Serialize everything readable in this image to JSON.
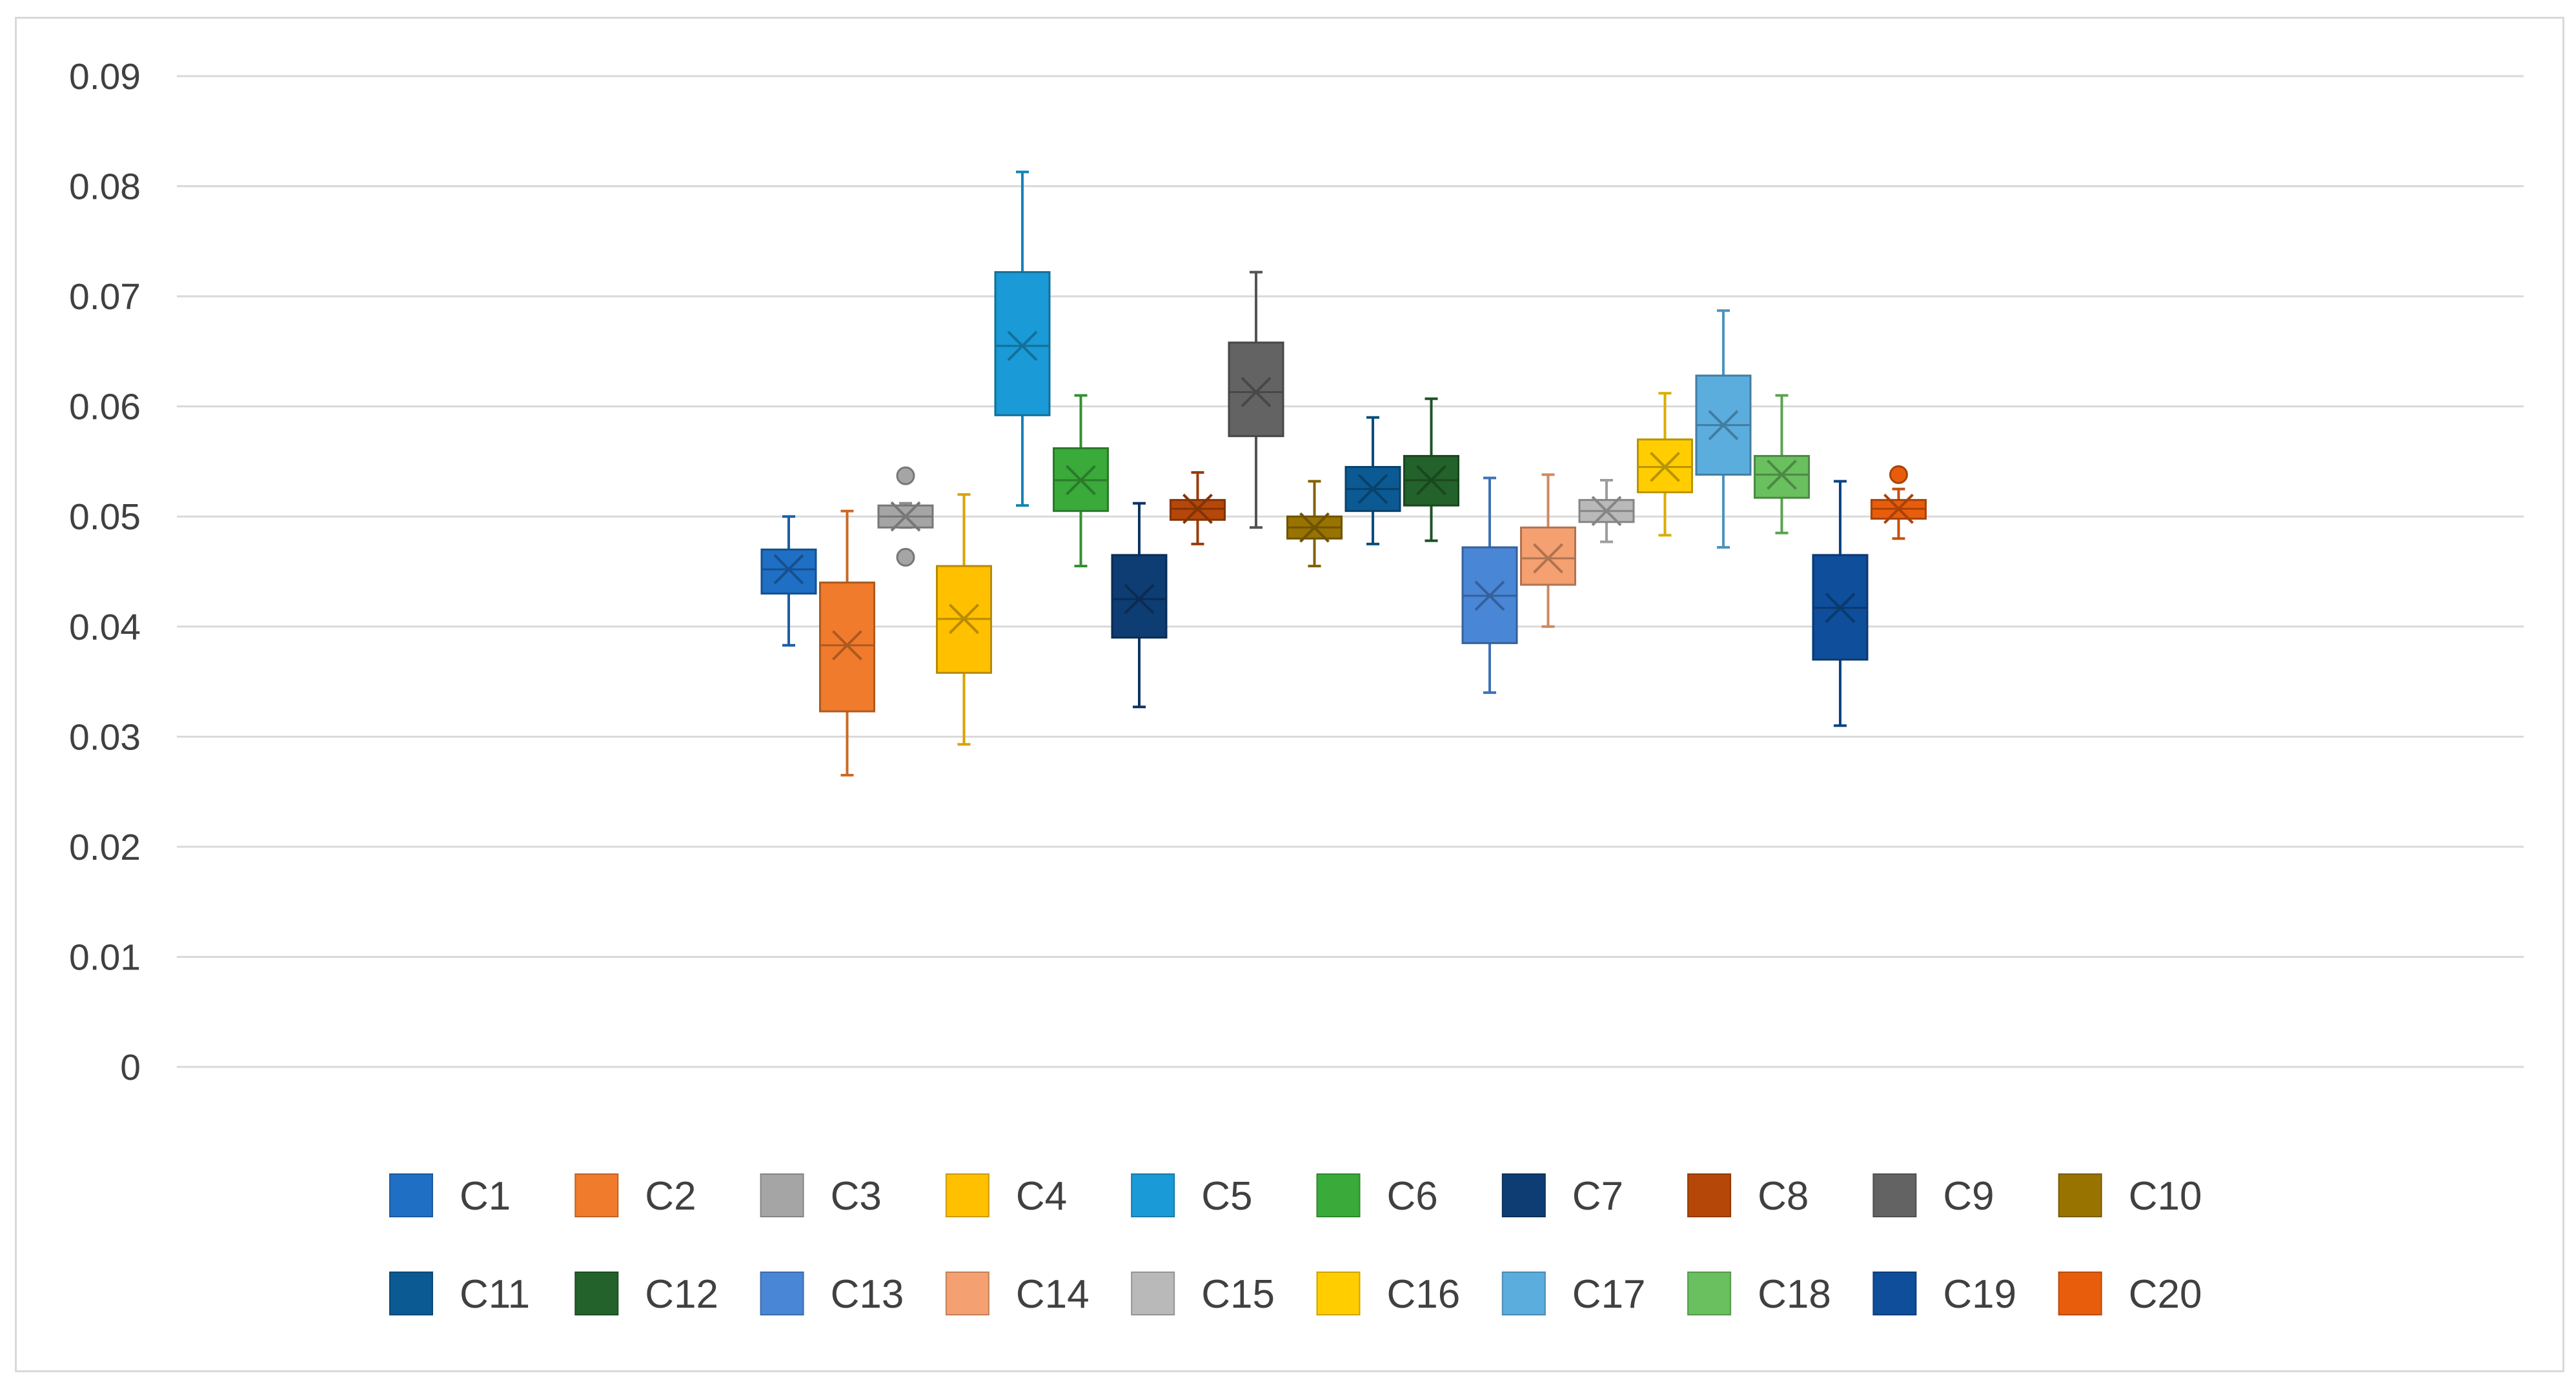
{
  "chart_data": {
    "type": "box",
    "title": "",
    "xlabel": "",
    "ylabel": "",
    "ylim": [
      0,
      0.09
    ],
    "y_ticks": [
      "0",
      "0.01",
      "0.02",
      "0.03",
      "0.04",
      "0.05",
      "0.06",
      "0.07",
      "0.08",
      "0.09"
    ],
    "grid": true,
    "legend_position": "bottom",
    "series": [
      {
        "name": "C1",
        "color": "#1f6fc5",
        "min": 0.0383,
        "q1": 0.043,
        "median": 0.0452,
        "q3": 0.047,
        "max": 0.05,
        "mean": 0.0452,
        "outliers": []
      },
      {
        "name": "C2",
        "color": "#f07b2c",
        "min": 0.0265,
        "q1": 0.0323,
        "median": 0.0383,
        "q3": 0.044,
        "max": 0.0505,
        "mean": 0.0383,
        "outliers": []
      },
      {
        "name": "C3",
        "color": "#a5a5a5",
        "min": 0.049,
        "q1": 0.049,
        "median": 0.05,
        "q3": 0.051,
        "max": 0.0512,
        "mean": 0.05,
        "outliers": [
          0.0537,
          0.0463
        ]
      },
      {
        "name": "C4",
        "color": "#ffc000",
        "min": 0.0293,
        "q1": 0.0358,
        "median": 0.0407,
        "q3": 0.0455,
        "max": 0.052,
        "mean": 0.0407,
        "outliers": []
      },
      {
        "name": "C5",
        "color": "#1a9ad6",
        "min": 0.051,
        "q1": 0.0592,
        "median": 0.0655,
        "q3": 0.0722,
        "max": 0.0813,
        "mean": 0.0655,
        "outliers": []
      },
      {
        "name": "C6",
        "color": "#3aaa3a",
        "min": 0.0455,
        "q1": 0.0505,
        "median": 0.0533,
        "q3": 0.0562,
        "max": 0.061,
        "mean": 0.0533,
        "outliers": []
      },
      {
        "name": "C7",
        "color": "#0e3d73",
        "min": 0.0327,
        "q1": 0.039,
        "median": 0.0425,
        "q3": 0.0465,
        "max": 0.0512,
        "mean": 0.0425,
        "outliers": []
      },
      {
        "name": "C8",
        "color": "#b54708",
        "min": 0.0475,
        "q1": 0.0497,
        "median": 0.0507,
        "q3": 0.0515,
        "max": 0.054,
        "mean": 0.0507,
        "outliers": []
      },
      {
        "name": "C9",
        "color": "#636363",
        "min": 0.049,
        "q1": 0.0573,
        "median": 0.0613,
        "q3": 0.0658,
        "max": 0.0722,
        "mean": 0.0613,
        "outliers": []
      },
      {
        "name": "C10",
        "color": "#997300",
        "min": 0.0455,
        "q1": 0.048,
        "median": 0.049,
        "q3": 0.05,
        "max": 0.0532,
        "mean": 0.049,
        "outliers": []
      },
      {
        "name": "C11",
        "color": "#0b5a93",
        "min": 0.0475,
        "q1": 0.0505,
        "median": 0.0525,
        "q3": 0.0545,
        "max": 0.059,
        "mean": 0.0525,
        "outliers": []
      },
      {
        "name": "C12",
        "color": "#23622b",
        "min": 0.0478,
        "q1": 0.051,
        "median": 0.0533,
        "q3": 0.0555,
        "max": 0.0607,
        "mean": 0.0533,
        "outliers": []
      },
      {
        "name": "C13",
        "color": "#4a86d6",
        "min": 0.034,
        "q1": 0.0385,
        "median": 0.0428,
        "q3": 0.0472,
        "max": 0.0535,
        "mean": 0.0428,
        "outliers": []
      },
      {
        "name": "C14",
        "color": "#f4a070",
        "min": 0.04,
        "q1": 0.0438,
        "median": 0.0462,
        "q3": 0.049,
        "max": 0.0538,
        "mean": 0.0462,
        "outliers": []
      },
      {
        "name": "C15",
        "color": "#b9b9b9",
        "min": 0.0477,
        "q1": 0.0495,
        "median": 0.0505,
        "q3": 0.0515,
        "max": 0.0533,
        "mean": 0.0505,
        "outliers": []
      },
      {
        "name": "C16",
        "color": "#ffcd00",
        "min": 0.0483,
        "q1": 0.0522,
        "median": 0.0545,
        "q3": 0.057,
        "max": 0.0612,
        "mean": 0.0545,
        "outliers": []
      },
      {
        "name": "C17",
        "color": "#5badde",
        "min": 0.0472,
        "q1": 0.0538,
        "median": 0.0583,
        "q3": 0.0628,
        "max": 0.0687,
        "mean": 0.0583,
        "outliers": []
      },
      {
        "name": "C18",
        "color": "#6abf5e",
        "min": 0.0485,
        "q1": 0.0517,
        "median": 0.0538,
        "q3": 0.0555,
        "max": 0.061,
        "mean": 0.0538,
        "outliers": []
      },
      {
        "name": "C19",
        "color": "#0f4e9a",
        "min": 0.031,
        "q1": 0.037,
        "median": 0.0417,
        "q3": 0.0465,
        "max": 0.0532,
        "mean": 0.0417,
        "outliers": []
      },
      {
        "name": "C20",
        "color": "#e85d0c",
        "min": 0.048,
        "q1": 0.0498,
        "median": 0.0507,
        "q3": 0.0515,
        "max": 0.0525,
        "mean": 0.0507,
        "outliers": [
          0.0538
        ]
      }
    ]
  }
}
